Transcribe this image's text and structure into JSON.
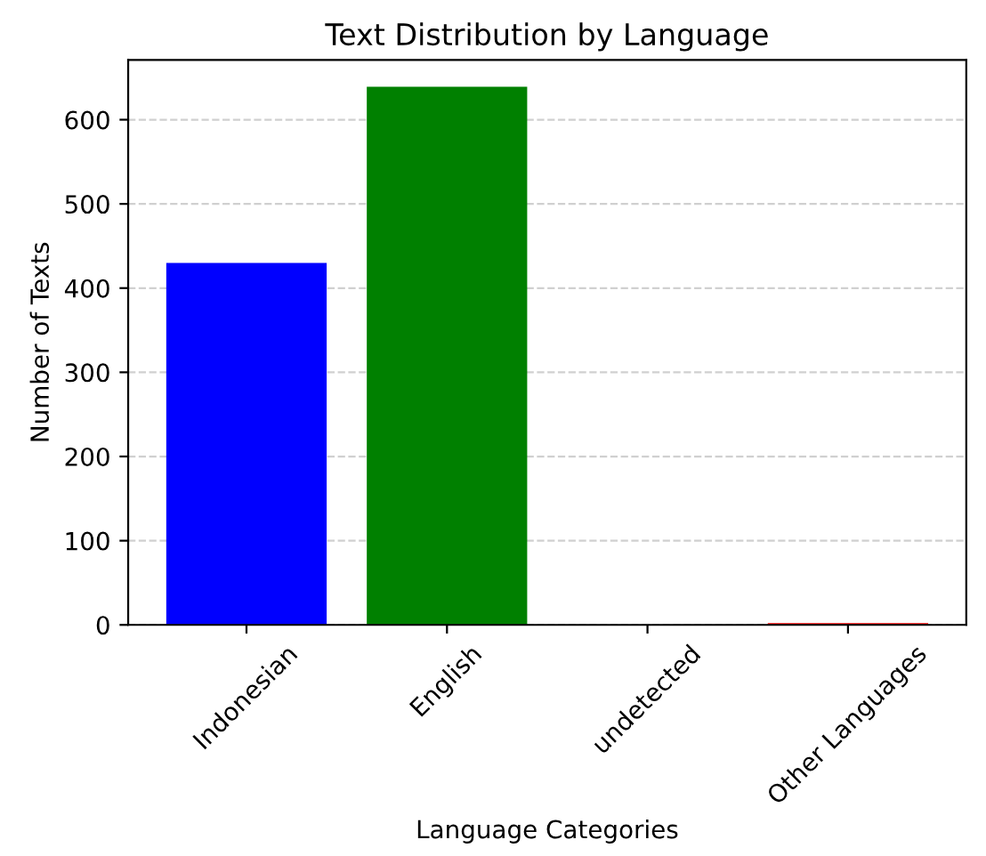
{
  "chart_data": {
    "type": "bar",
    "title": "Text Distribution by Language",
    "xlabel": "Language Categories",
    "ylabel": "Number of Texts",
    "categories": [
      "Indonesian",
      "English",
      "undetected",
      "Other Languages"
    ],
    "values": [
      430,
      639,
      0,
      2
    ],
    "colors": [
      "#0000ff",
      "#008000",
      "#ffa500",
      "#ff0000"
    ],
    "ylim": [
      0,
      671
    ],
    "yticks": [
      0,
      100,
      200,
      300,
      400,
      500,
      600
    ],
    "grid": "y"
  }
}
